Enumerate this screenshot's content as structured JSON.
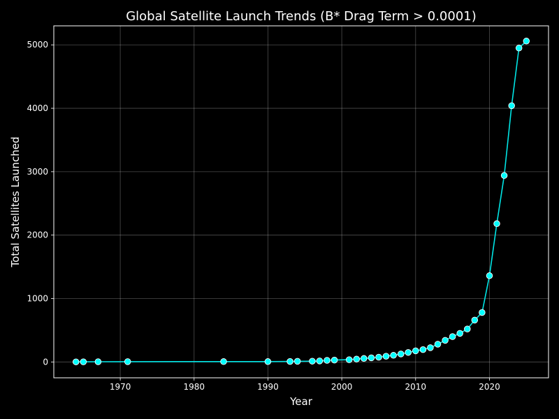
{
  "chart_data": {
    "type": "line",
    "title": "Global Satellite Launch Trends (B* Drag Term > 0.0001)",
    "xlabel": "Year",
    "ylabel": "Total Satellites Launched",
    "xlim": [
      1961,
      2028
    ],
    "ylim": [
      -250,
      5300
    ],
    "xticks": [
      1970,
      1980,
      1990,
      2000,
      2010,
      2020
    ],
    "yticks": [
      0,
      1000,
      2000,
      3000,
      4000,
      5000
    ],
    "grid": true,
    "series": [
      {
        "color": "#00e5e5",
        "marker_face": "#00ffff",
        "marker_edge": "#ffffff",
        "x": [
          1964,
          1965,
          1967,
          1971,
          1984,
          1990,
          1993,
          1994,
          1996,
          1997,
          1998,
          1999,
          2001,
          2002,
          2003,
          2004,
          2005,
          2006,
          2007,
          2008,
          2009,
          2010,
          2011,
          2012,
          2013,
          2014,
          2015,
          2016,
          2017,
          2018,
          2019,
          2020,
          2021,
          2022,
          2023,
          2024,
          2025
        ],
        "y": [
          1,
          2,
          3,
          4,
          5,
          6,
          8,
          10,
          12,
          15,
          25,
          30,
          35,
          45,
          55,
          65,
          75,
          90,
          105,
          125,
          150,
          175,
          195,
          225,
          280,
          340,
          400,
          450,
          520,
          660,
          780,
          1360,
          2180,
          2940,
          4040,
          4950,
          5060
        ]
      }
    ]
  }
}
